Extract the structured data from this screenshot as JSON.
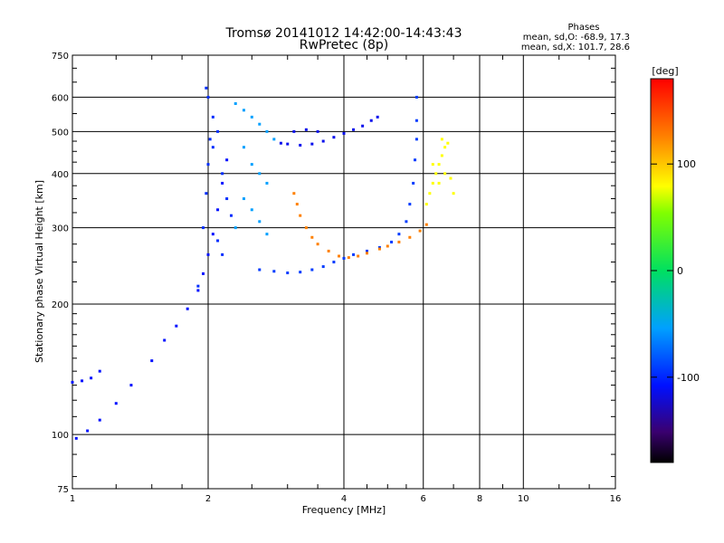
{
  "chart_data": {
    "type": "scatter",
    "title": "Tromsø 20141012 14:42:00-14:43:43",
    "subtitle": "RwPretec (8p)",
    "stats_title": "Phases",
    "stats_line1": "mean, sd,O: -68.9, 17.3",
    "stats_line2": "mean, sd,X: 101.7, 28.6",
    "xlabel": "Frequency [MHz]",
    "ylabel": "Stationary phase Virtual Height [km]",
    "x_scale": "log",
    "y_scale": "log",
    "xlim": [
      1,
      16
    ],
    "ylim": [
      75,
      750
    ],
    "x_ticks": [
      1,
      2,
      4,
      6,
      8,
      10,
      16
    ],
    "x_tick_labels": [
      "1",
      "2",
      "4",
      "6",
      "8",
      "10",
      "16"
    ],
    "y_ticks": [
      75,
      100,
      200,
      300,
      400,
      500,
      600,
      750
    ],
    "y_tick_labels": [
      "75",
      "100",
      "200",
      "300",
      "400",
      "500",
      "600",
      "750"
    ],
    "x_grid": [
      1,
      2,
      4,
      6,
      8,
      10,
      16
    ],
    "y_grid": [
      100,
      200,
      300,
      400,
      500,
      600
    ],
    "grid": true,
    "colorbar": {
      "label": "[deg]",
      "range": [
        -180,
        180
      ],
      "ticks": [
        100,
        0,
        -100
      ],
      "tick_labels": [
        "100",
        "0",
        "-100"
      ]
    },
    "series": [
      {
        "name": "",
        "phase_deg": -110,
        "points": [
          [
            1.0,
            132
          ],
          [
            1.05,
            133
          ],
          [
            1.1,
            135
          ],
          [
            1.15,
            140
          ],
          [
            1.02,
            98
          ],
          [
            1.08,
            102
          ],
          [
            1.15,
            108
          ],
          [
            1.25,
            118
          ],
          [
            1.35,
            130
          ],
          [
            1.5,
            148
          ],
          [
            1.6,
            165
          ],
          [
            1.7,
            178
          ],
          [
            1.8,
            195
          ],
          [
            1.9,
            215
          ],
          [
            1.95,
            235
          ],
          [
            2.0,
            260
          ],
          [
            2.05,
            290
          ],
          [
            2.1,
            330
          ],
          [
            2.15,
            380
          ],
          [
            2.2,
            430
          ]
        ]
      },
      {
        "name": "",
        "phase_deg": -100,
        "points": [
          [
            1.9,
            220
          ],
          [
            1.95,
            300
          ],
          [
            1.98,
            360
          ],
          [
            2.0,
            420
          ],
          [
            2.02,
            480
          ],
          [
            2.05,
            540
          ],
          [
            2.0,
            600
          ],
          [
            1.98,
            630
          ],
          [
            2.1,
            500
          ],
          [
            2.05,
            460
          ],
          [
            2.15,
            400
          ],
          [
            2.2,
            350
          ],
          [
            2.25,
            320
          ],
          [
            2.1,
            280
          ],
          [
            2.15,
            260
          ]
        ]
      },
      {
        "name": "",
        "phase_deg": -60,
        "points": [
          [
            2.3,
            580
          ],
          [
            2.4,
            560
          ],
          [
            2.5,
            540
          ],
          [
            2.6,
            520
          ],
          [
            2.7,
            500
          ],
          [
            2.8,
            480
          ],
          [
            2.4,
            460
          ],
          [
            2.5,
            420
          ],
          [
            2.6,
            400
          ],
          [
            2.7,
            380
          ],
          [
            2.4,
            350
          ],
          [
            2.5,
            330
          ],
          [
            2.6,
            310
          ],
          [
            2.3,
            300
          ],
          [
            2.7,
            290
          ]
        ]
      },
      {
        "name": "",
        "phase_deg": -95,
        "points": [
          [
            2.6,
            240
          ],
          [
            2.8,
            238
          ],
          [
            3.0,
            236
          ],
          [
            3.2,
            237
          ],
          [
            3.4,
            240
          ],
          [
            3.6,
            244
          ],
          [
            3.8,
            250
          ],
          [
            4.0,
            255
          ],
          [
            4.2,
            260
          ],
          [
            4.5,
            265
          ],
          [
            4.8,
            270
          ],
          [
            5.1,
            278
          ],
          [
            5.3,
            290
          ],
          [
            5.5,
            310
          ],
          [
            5.6,
            340
          ],
          [
            5.7,
            380
          ],
          [
            5.75,
            430
          ],
          [
            5.8,
            480
          ],
          [
            5.8,
            530
          ],
          [
            5.8,
            600
          ]
        ]
      },
      {
        "name": "",
        "phase_deg": 125,
        "points": [
          [
            3.1,
            360
          ],
          [
            3.15,
            340
          ],
          [
            3.2,
            320
          ],
          [
            3.3,
            300
          ],
          [
            3.4,
            285
          ],
          [
            3.5,
            275
          ],
          [
            3.7,
            265
          ],
          [
            3.9,
            258
          ],
          [
            4.1,
            256
          ],
          [
            4.3,
            258
          ],
          [
            4.5,
            262
          ],
          [
            4.8,
            268
          ],
          [
            5.0,
            272
          ],
          [
            5.3,
            278
          ],
          [
            5.6,
            285
          ],
          [
            5.9,
            295
          ],
          [
            6.1,
            305
          ]
        ]
      },
      {
        "name": "",
        "phase_deg": -115,
        "points": [
          [
            2.9,
            470
          ],
          [
            3.0,
            468
          ],
          [
            3.2,
            465
          ],
          [
            3.4,
            468
          ],
          [
            3.6,
            475
          ],
          [
            3.8,
            485
          ],
          [
            4.0,
            495
          ],
          [
            4.2,
            505
          ],
          [
            4.4,
            515
          ],
          [
            4.6,
            530
          ],
          [
            4.75,
            540
          ],
          [
            3.1,
            500
          ],
          [
            3.3,
            505
          ],
          [
            3.5,
            500
          ]
        ]
      },
      {
        "name": "",
        "phase_deg": 80,
        "points": [
          [
            6.1,
            340
          ],
          [
            6.2,
            360
          ],
          [
            6.3,
            380
          ],
          [
            6.4,
            400
          ],
          [
            6.5,
            420
          ],
          [
            6.6,
            440
          ],
          [
            6.7,
            460
          ],
          [
            6.8,
            470
          ],
          [
            6.5,
            380
          ],
          [
            6.7,
            400
          ],
          [
            6.9,
            390
          ],
          [
            7.0,
            360
          ],
          [
            6.3,
            420
          ],
          [
            6.6,
            480
          ]
        ]
      }
    ]
  }
}
